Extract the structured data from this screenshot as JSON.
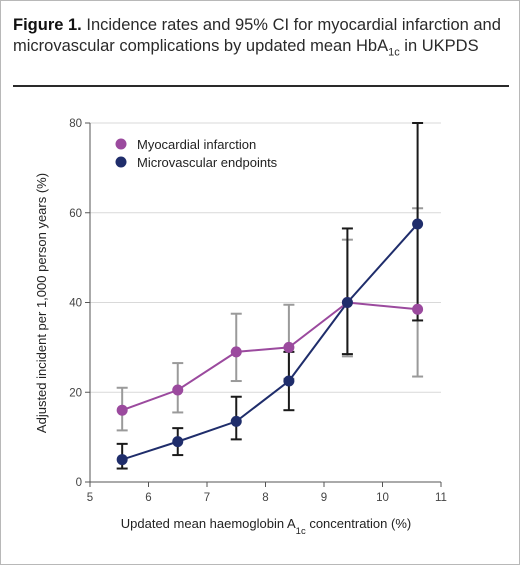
{
  "figure": {
    "title_bold": "Figure 1.",
    "title_rest": "Incidence rates and 95% CI for myocardial infarction and microvascular complications by updated mean HbA",
    "title_sub": "1c",
    "title_tail": " in UKPDS"
  },
  "chart_data": {
    "type": "line",
    "xlabel_main": "Updated mean haemoglobin A",
    "xlabel_sub": "1c",
    "xlabel_tail": " concentration (%)",
    "ylabel": "Adjusted incident per 1,000 person years (%)",
    "xlim": [
      5,
      11
    ],
    "ylim": [
      0,
      80
    ],
    "x_ticks": [
      5,
      6,
      7,
      8,
      9,
      10,
      11
    ],
    "y_ticks": [
      0,
      20,
      40,
      60,
      80
    ],
    "grid": "horizontal",
    "legend_position": "top-left",
    "series": [
      {
        "name": "Myocardial infarction",
        "color": "#9b4a9e",
        "errorbar_color": "#9a9a9a",
        "x": [
          5.55,
          6.5,
          7.5,
          8.4,
          9.4,
          10.6
        ],
        "y": [
          16,
          20.5,
          29,
          30,
          40,
          38.5
        ],
        "lower": [
          11.5,
          15.5,
          22.5,
          23,
          28,
          23.5
        ],
        "upper": [
          21,
          26.5,
          37.5,
          39.5,
          54,
          61
        ]
      },
      {
        "name": "Microvascular endpoints",
        "color": "#1f2d6b",
        "errorbar_color": "#1a1a1a",
        "x": [
          5.55,
          6.5,
          7.5,
          8.4,
          9.4,
          10.6
        ],
        "y": [
          5,
          9,
          13.5,
          22.5,
          40,
          57.5
        ],
        "lower": [
          3,
          6,
          9.5,
          16,
          28.5,
          36
        ],
        "upper": [
          8.5,
          12,
          19,
          29,
          56.5,
          80
        ]
      }
    ]
  }
}
